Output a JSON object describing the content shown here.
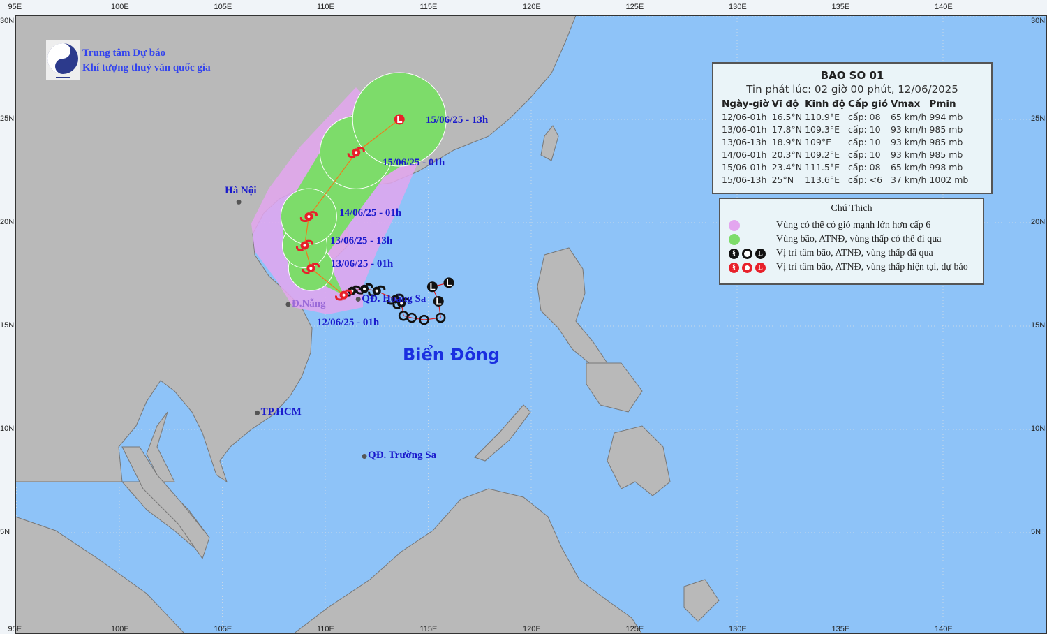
{
  "logo": {
    "text": "NCHMF",
    "line1": "Trung tâm Dự báo",
    "line2": "Khí tượng thuỷ văn quốc gia"
  },
  "map": {
    "lon_ticks": [
      "95E",
      "100E",
      "105E",
      "110E",
      "115E",
      "120E",
      "125E",
      "130E",
      "135E",
      "140E"
    ],
    "lat_ticks": [
      "30N",
      "25N",
      "20N",
      "15N",
      "10N",
      "5N"
    ],
    "colors": {
      "sea": "#8ec3f8",
      "land": "#b9b9b9",
      "strong_wind_zone": "#e3a6ef",
      "storm_zone": "#7ddc6a",
      "track": "#e01b1b"
    },
    "sea_label": "Biển Đông",
    "places": [
      {
        "name": "Hà Nội",
        "lat": 21.0,
        "lon": 105.8
      },
      {
        "name": "Đ.Nẵng",
        "lat": 16.05,
        "lon": 108.2
      },
      {
        "name": "TP.HCM",
        "lat": 10.8,
        "lon": 106.7
      },
      {
        "name": "QĐ. Hoàng Sa",
        "lat": 16.3,
        "lon": 111.6
      },
      {
        "name": "QĐ. Trường Sa",
        "lat": 8.7,
        "lon": 111.9
      }
    ],
    "point_labels": [
      "12/06/25 - 01h",
      "13/06/25 - 01h",
      "13/06/25 - 13h",
      "14/06/25 - 01h",
      "15/06/25 - 01h",
      "15/06/25 - 13h"
    ]
  },
  "bulletin": {
    "title": "BAO SO 01",
    "issued": "Tin phát lúc: 02 giờ 00 phút, 12/06/2025",
    "headers": [
      "Ngày-giờ",
      "Vĩ độ",
      "Kinh độ",
      "Cấp gió",
      "Vmax",
      "Pmin"
    ],
    "rows": [
      [
        "12/06-01h",
        "16.5°N",
        "110.9°E",
        "cấp: 08",
        "65 km/h",
        "994 mb"
      ],
      [
        "13/06-01h",
        "17.8°N",
        "109.3°E",
        "cấp: 10",
        "93 km/h",
        "985 mb"
      ],
      [
        "13/06-13h",
        "18.9°N",
        "109°E",
        "cấp: 10",
        "93 km/h",
        "985 mb"
      ],
      [
        "14/06-01h",
        "20.3°N",
        "109.2°E",
        "cấp: 10",
        "93 km/h",
        "985 mb"
      ],
      [
        "15/06-01h",
        "23.4°N",
        "111.5°E",
        "cấp: 08",
        "65 km/h",
        "998 mb"
      ],
      [
        "15/06-13h",
        "25°N",
        "113.6°E",
        "cấp: <6",
        "37 km/h",
        "1002 mb"
      ]
    ]
  },
  "forecast_track": [
    {
      "lat": 16.5,
      "lon": 110.9,
      "type": "storm"
    },
    {
      "lat": 17.8,
      "lon": 109.3,
      "type": "storm"
    },
    {
      "lat": 18.9,
      "lon": 109.0,
      "type": "storm"
    },
    {
      "lat": 20.3,
      "lon": 109.2,
      "type": "storm"
    },
    {
      "lat": 23.4,
      "lon": 111.5,
      "type": "storm"
    },
    {
      "lat": 25.0,
      "lon": 113.6,
      "type": "low"
    }
  ],
  "past_track": [
    {
      "lat": 17.1,
      "lon": 116.0,
      "type": "low"
    },
    {
      "lat": 16.9,
      "lon": 115.2,
      "type": "low"
    },
    {
      "lat": 16.2,
      "lon": 115.5,
      "type": "low"
    },
    {
      "lat": 15.4,
      "lon": 115.6,
      "type": "depression"
    },
    {
      "lat": 15.3,
      "lon": 114.8,
      "type": "depression"
    },
    {
      "lat": 15.4,
      "lon": 114.2,
      "type": "depression"
    },
    {
      "lat": 15.5,
      "lon": 113.8,
      "type": "depression"
    },
    {
      "lat": 16.1,
      "lon": 113.7,
      "type": "storm"
    },
    {
      "lat": 16.3,
      "lon": 113.4,
      "type": "storm"
    },
    {
      "lat": 16.7,
      "lon": 112.5,
      "type": "storm"
    },
    {
      "lat": 16.8,
      "lon": 111.9,
      "type": "storm"
    },
    {
      "lat": 16.7,
      "lon": 111.3,
      "type": "storm"
    }
  ],
  "legend": {
    "title": "Chú Thich",
    "items": [
      "Vùng có thể có gió mạnh lớn hơn cấp 6",
      "Vùng bão, ATNĐ, vùng thấp có thể đi qua",
      "Vị trí tâm bão, ATNĐ, vùng thấp đã qua",
      "Vị trí tâm bão, ATNĐ, vùng thấp hiện tại, dự báo"
    ],
    "low_symbol": "L"
  }
}
